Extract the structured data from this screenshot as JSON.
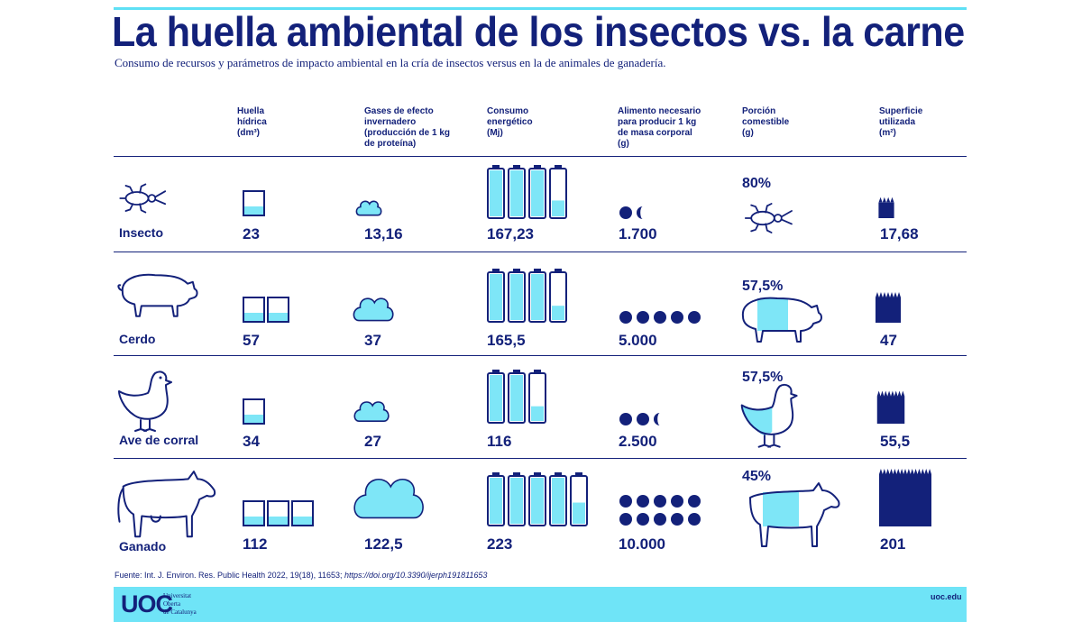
{
  "header": {
    "title": "La huella ambiental de los insectos vs. la carne",
    "subtitle": "Consumo de recursos y parámetros de impacto ambiental en la cría de insectos versus en la de animales de ganadería."
  },
  "columns": [
    {
      "lines": [
        "Huella",
        "hídrica",
        "(dm³)"
      ]
    },
    {
      "lines": [
        "Gases de efecto",
        "invernadero",
        "(producción de 1 kg",
        "de proteína)"
      ]
    },
    {
      "lines": [
        "Consumo",
        "energético",
        "(Mj)"
      ]
    },
    {
      "lines": [
        "Alimento necesario",
        "para producir 1 kg",
        "de masa corporal",
        "(g)"
      ]
    },
    {
      "lines": [
        "Porción",
        "comestible",
        "(g)"
      ]
    },
    {
      "lines": [
        "Superficie",
        "utilizada",
        "(m²)"
      ]
    }
  ],
  "rows": [
    {
      "label": "Insecto",
      "icon": "insect-icon",
      "water": "23",
      "ghg": "13,16",
      "energy": "167,23",
      "feed": "1.700",
      "edible": "80%",
      "area": "17,68"
    },
    {
      "label": "Cerdo",
      "icon": "pig-icon",
      "water": "57",
      "ghg": "37",
      "energy": "165,5",
      "feed": "5.000",
      "edible": "57,5%",
      "area": "47"
    },
    {
      "label": "Ave de corral",
      "icon": "chicken-icon",
      "water": "34",
      "ghg": "27",
      "energy": "116",
      "feed": "2.500",
      "edible": "57,5%",
      "area": "55,5"
    },
    {
      "label": "Ganado",
      "icon": "cow-icon",
      "water": "112",
      "ghg": "122,5",
      "energy": "223",
      "feed": "10.000",
      "edible": "45%",
      "area": "201"
    }
  ],
  "chart_data": {
    "type": "table",
    "title": "La huella ambiental de los insectos vs. la carne",
    "categories": [
      "Insecto",
      "Cerdo",
      "Ave de corral",
      "Ganado"
    ],
    "series": [
      {
        "name": "Huella hídrica (dm³)",
        "values": [
          23,
          57,
          34,
          112
        ]
      },
      {
        "name": "Gases de efecto invernadero (producción de 1 kg de proteína)",
        "values": [
          13.16,
          37,
          27,
          122.5
        ]
      },
      {
        "name": "Consumo energético (Mj)",
        "values": [
          167.23,
          165.5,
          116,
          223
        ]
      },
      {
        "name": "Alimento necesario para producir 1 kg de masa corporal (g)",
        "values": [
          1700,
          5000,
          2500,
          10000
        ]
      },
      {
        "name": "Porción comestible (g)",
        "values": [
          80,
          57.5,
          57.5,
          45
        ]
      },
      {
        "name": "Superficie utilizada (m²)",
        "values": [
          17.68,
          47,
          55.5,
          201
        ]
      }
    ]
  },
  "footer": {
    "source_prefix": "Fuente: Int. J. Environ. Res. Public Health 2022, 19(18), 11653; ",
    "source_link": "https://doi.org/10.3390/ijerph191811653",
    "logo_mark": "UOC",
    "logo_lines": [
      "Universitat",
      "Oberta",
      "de Catalunya"
    ],
    "url": "uoc.edu"
  },
  "colors": {
    "navy": "#13217a",
    "cyan": "#6fe4f7",
    "cyan_fill": "#7ee6f7"
  }
}
